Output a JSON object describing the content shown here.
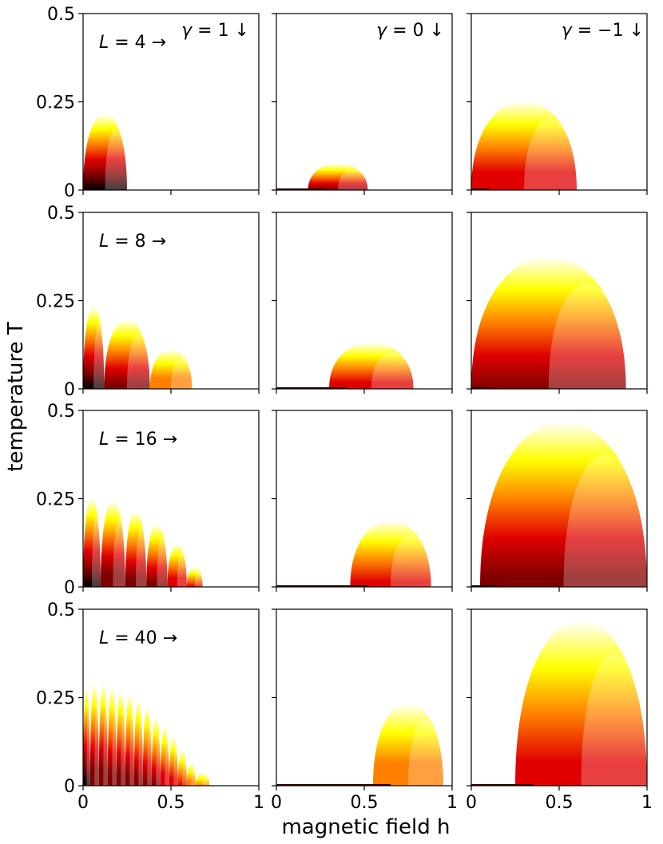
{
  "chart_data": {
    "type": "heatmap",
    "layout": "4 rows x 3 columns of phase-diagram panels",
    "xlabel": "magnetic field h",
    "ylabel": "temperature T",
    "xlim": [
      0,
      1
    ],
    "ylim": [
      0,
      0.5
    ],
    "x_ticks": [
      "0",
      "0.5",
      "1"
    ],
    "y_ticks": [
      "0",
      "0.25",
      "0.5"
    ],
    "columns": [
      {
        "gamma": 1,
        "label_math": "γ = 1",
        "label_arrow": "↓"
      },
      {
        "gamma": 0,
        "label_math": "γ = 0",
        "label_arrow": "↓"
      },
      {
        "gamma": -1,
        "label_math": "γ = −1",
        "label_arrow": "↓"
      }
    ],
    "rows": [
      {
        "L": 4,
        "label_math": "L = 4",
        "label_arrow": "→"
      },
      {
        "L": 8,
        "label_math": "L = 8",
        "label_arrow": "→"
      },
      {
        "L": 16,
        "label_math": "L = 16",
        "label_arrow": "→"
      },
      {
        "L": 40,
        "label_math": "L = 40",
        "label_arrow": "→"
      }
    ],
    "colormap": [
      "#ffffff",
      "#ffff00",
      "#ff8000",
      "#e00000",
      "#800000",
      "#000000"
    ],
    "panels": [
      [
        {
          "regions": [
            {
              "h_start": 0.0,
              "h_end": 0.25,
              "T_peak": 0.23,
              "intensity": 1.0
            }
          ]
        },
        {
          "regions": [
            {
              "h_start": 0.18,
              "h_end": 0.52,
              "T_peak": 0.08,
              "intensity": 0.8
            }
          ]
        },
        {
          "regions": [
            {
              "h_start": 0.0,
              "h_end": 0.6,
              "T_peak": 0.27,
              "intensity": 0.75
            }
          ]
        }
      ],
      [
        {
          "regions": [
            {
              "h_start": 0.0,
              "h_end": 0.12,
              "T_peak": 0.25,
              "intensity": 1.0
            },
            {
              "h_start": 0.12,
              "h_end": 0.38,
              "T_peak": 0.21,
              "intensity": 0.85
            },
            {
              "h_start": 0.38,
              "h_end": 0.62,
              "T_peak": 0.12,
              "intensity": 0.55
            }
          ]
        },
        {
          "regions": [
            {
              "h_start": 0.3,
              "h_end": 0.78,
              "T_peak": 0.14,
              "intensity": 0.7
            }
          ]
        },
        {
          "regions": [
            {
              "h_start": 0.0,
              "h_end": 0.88,
              "T_peak": 0.4,
              "intensity": 0.8
            }
          ]
        }
      ],
      [
        {
          "regions": [
            {
              "h_start": 0.0,
              "h_end": 0.1,
              "T_peak": 0.27,
              "intensity": 1.0
            },
            {
              "h_start": 0.1,
              "h_end": 0.24,
              "T_peak": 0.26,
              "intensity": 0.95
            },
            {
              "h_start": 0.24,
              "h_end": 0.36,
              "T_peak": 0.23,
              "intensity": 0.9
            },
            {
              "h_start": 0.36,
              "h_end": 0.48,
              "T_peak": 0.19,
              "intensity": 0.85
            },
            {
              "h_start": 0.48,
              "h_end": 0.59,
              "T_peak": 0.13,
              "intensity": 0.75
            },
            {
              "h_start": 0.59,
              "h_end": 0.68,
              "T_peak": 0.06,
              "intensity": 0.6
            }
          ]
        },
        {
          "regions": [
            {
              "h_start": 0.42,
              "h_end": 0.88,
              "T_peak": 0.2,
              "intensity": 0.65
            }
          ]
        },
        {
          "regions": [
            {
              "h_start": 0.05,
              "h_end": 1.0,
              "T_peak": 0.5,
              "intensity": 0.85
            }
          ]
        }
      ],
      [
        {
          "regions": [
            {
              "h_start": 0.0,
              "h_end": 0.04,
              "T_peak": 0.3,
              "intensity": 1.0
            },
            {
              "h_start": 0.04,
              "h_end": 0.09,
              "T_peak": 0.31,
              "intensity": 0.95
            },
            {
              "h_start": 0.09,
              "h_end": 0.14,
              "T_peak": 0.31,
              "intensity": 0.95
            },
            {
              "h_start": 0.14,
              "h_end": 0.19,
              "T_peak": 0.3,
              "intensity": 0.9
            },
            {
              "h_start": 0.19,
              "h_end": 0.24,
              "T_peak": 0.29,
              "intensity": 0.9
            },
            {
              "h_start": 0.24,
              "h_end": 0.29,
              "T_peak": 0.28,
              "intensity": 0.88
            },
            {
              "h_start": 0.29,
              "h_end": 0.34,
              "T_peak": 0.26,
              "intensity": 0.85
            },
            {
              "h_start": 0.34,
              "h_end": 0.39,
              "T_peak": 0.24,
              "intensity": 0.83
            },
            {
              "h_start": 0.39,
              "h_end": 0.44,
              "T_peak": 0.21,
              "intensity": 0.8
            },
            {
              "h_start": 0.44,
              "h_end": 0.49,
              "T_peak": 0.18,
              "intensity": 0.75
            },
            {
              "h_start": 0.49,
              "h_end": 0.54,
              "T_peak": 0.15,
              "intensity": 0.7
            },
            {
              "h_start": 0.54,
              "h_end": 0.59,
              "T_peak": 0.11,
              "intensity": 0.6
            },
            {
              "h_start": 0.59,
              "h_end": 0.64,
              "T_peak": 0.07,
              "intensity": 0.5
            },
            {
              "h_start": 0.64,
              "h_end": 0.72,
              "T_peak": 0.04,
              "intensity": 0.4
            }
          ]
        },
        {
          "regions": [
            {
              "h_start": 0.55,
              "h_end": 0.95,
              "T_peak": 0.25,
              "intensity": 0.55
            }
          ]
        },
        {
          "regions": [
            {
              "h_start": 0.25,
              "h_end": 1.0,
              "T_peak": 0.5,
              "intensity": 0.7
            }
          ]
        }
      ]
    ]
  }
}
